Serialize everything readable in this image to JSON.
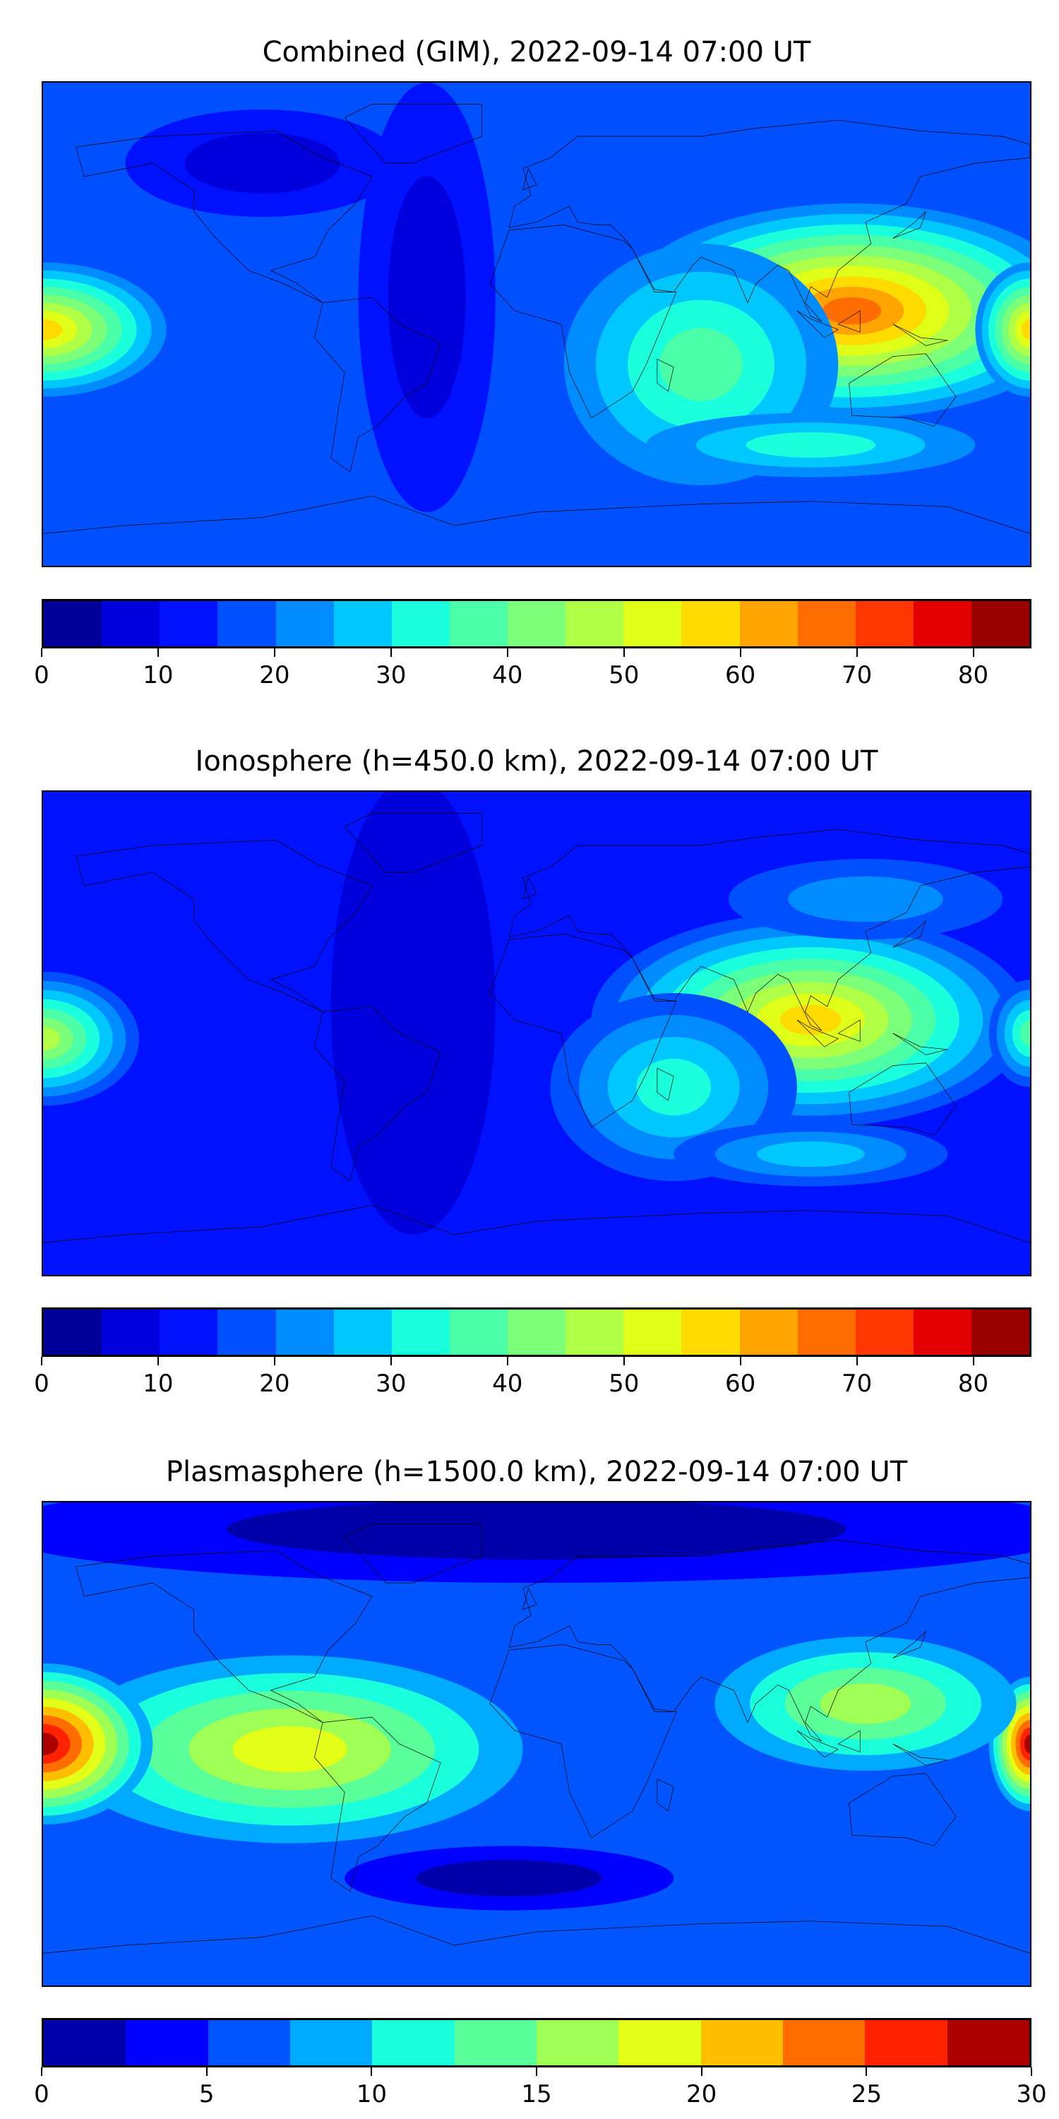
{
  "chart_data": [
    {
      "type": "heatmap",
      "title": "Combined (GIM), 2022-09-14 07:00 UT",
      "projection": "equirectangular world map with coastlines",
      "levels": [
        0,
        5,
        10,
        15,
        20,
        25,
        30,
        35,
        40,
        45,
        50,
        55,
        60,
        65,
        70,
        75,
        80,
        85
      ],
      "colors": [
        "#000099",
        "#0000dd",
        "#0011ff",
        "#0050ff",
        "#008cff",
        "#00c8ff",
        "#1affdc",
        "#4affa8",
        "#7cff79",
        "#b0ff47",
        "#dfff18",
        "#ffdb00",
        "#ffa400",
        "#ff6d00",
        "#ff3600",
        "#e20000",
        "#990000"
      ],
      "colorbar_ticks": [
        "0",
        "10",
        "20",
        "30",
        "40",
        "50",
        "60",
        "70",
        "80"
      ],
      "colorbar_tick_values": [
        0,
        10,
        20,
        30,
        40,
        50,
        60,
        70,
        80
      ],
      "vrange": [
        0,
        85
      ],
      "background_level": 15,
      "features": [
        {
          "lon": -40,
          "lat": 10,
          "value": 5,
          "rx": 25,
          "ry": 80
        },
        {
          "lon": -100,
          "lat": 60,
          "value": 5,
          "rx": 50,
          "ry": 20
        },
        {
          "lon": 115,
          "lat": 5,
          "value": 65,
          "rx": 85,
          "ry": 40
        },
        {
          "lon": 60,
          "lat": -15,
          "value": 35,
          "rx": 50,
          "ry": 45
        },
        {
          "lon": -180,
          "lat": -2,
          "value": 55,
          "rx": 45,
          "ry": 25
        },
        {
          "lon": 180,
          "lat": -2,
          "value": 55,
          "rx": 20,
          "ry": 25
        },
        {
          "lon": 100,
          "lat": -45,
          "value": 30,
          "rx": 60,
          "ry": 12
        }
      ]
    },
    {
      "type": "heatmap",
      "title": "Ionosphere  (h=450.0 km), 2022-09-14 07:00 UT",
      "projection": "equirectangular world map with coastlines",
      "levels": [
        0,
        5,
        10,
        15,
        20,
        25,
        30,
        35,
        40,
        45,
        50,
        55,
        60,
        65,
        70,
        75,
        80,
        85
      ],
      "colors": [
        "#000099",
        "#0000dd",
        "#0011ff",
        "#0050ff",
        "#008cff",
        "#00c8ff",
        "#1affdc",
        "#4affa8",
        "#7cff79",
        "#b0ff47",
        "#dfff18",
        "#ffdb00",
        "#ffa400",
        "#ff6d00",
        "#ff3600",
        "#e20000",
        "#990000"
      ],
      "colorbar_ticks": [
        "0",
        "10",
        "20",
        "30",
        "40",
        "50",
        "60",
        "70",
        "80"
      ],
      "colorbar_tick_values": [
        0,
        10,
        20,
        30,
        40,
        50,
        60,
        70,
        80
      ],
      "vrange": [
        0,
        85
      ],
      "background_level": 10,
      "features": [
        {
          "lon": -45,
          "lat": 10,
          "value": 5,
          "rx": 30,
          "ry": 85
        },
        {
          "lon": 100,
          "lat": 5,
          "value": 55,
          "rx": 80,
          "ry": 40
        },
        {
          "lon": 50,
          "lat": -20,
          "value": 30,
          "rx": 45,
          "ry": 35
        },
        {
          "lon": -180,
          "lat": -2,
          "value": 45,
          "rx": 35,
          "ry": 25
        },
        {
          "lon": 180,
          "lat": 0,
          "value": 35,
          "rx": 15,
          "ry": 20
        },
        {
          "lon": 100,
          "lat": -45,
          "value": 25,
          "rx": 50,
          "ry": 12
        },
        {
          "lon": 120,
          "lat": 50,
          "value": 20,
          "rx": 50,
          "ry": 15
        }
      ]
    },
    {
      "type": "heatmap",
      "title": "Plasmasphere (h=1500.0 km), 2022-09-14 07:00 UT",
      "projection": "equirectangular world map with coastlines",
      "levels": [
        0,
        2.5,
        5,
        7.5,
        10,
        12.5,
        15,
        17.5,
        20,
        22.5,
        25,
        27.5,
        30
      ],
      "colors": [
        "#0000aa",
        "#0000ff",
        "#0055ff",
        "#00aaff",
        "#1affdc",
        "#5bff9a",
        "#a0ff55",
        "#e4ff17",
        "#ffbf00",
        "#ff6d00",
        "#ff2200",
        "#aa0000"
      ],
      "colorbar_ticks": [
        "0",
        "5",
        "10",
        "15",
        "20",
        "25",
        "30"
      ],
      "colorbar_tick_values": [
        0,
        5,
        10,
        15,
        20,
        25,
        30
      ],
      "vrange": [
        0,
        30
      ],
      "background_level": 5,
      "features": [
        {
          "lon": 0,
          "lat": 80,
          "value": 0,
          "rx": 200,
          "ry": 20
        },
        {
          "lon": -10,
          "lat": -50,
          "value": 0,
          "rx": 60,
          "ry": 12
        },
        {
          "lon": -90,
          "lat": -2,
          "value": 17.5,
          "rx": 85,
          "ry": 35
        },
        {
          "lon": -180,
          "lat": 0,
          "value": 27.5,
          "rx": 40,
          "ry": 30
        },
        {
          "lon": 180,
          "lat": 0,
          "value": 27.5,
          "rx": 15,
          "ry": 25
        },
        {
          "lon": 120,
          "lat": 15,
          "value": 15,
          "rx": 55,
          "ry": 25
        },
        {
          "lon": 10,
          "lat": 5,
          "value": 5,
          "rx": 30,
          "ry": 25
        }
      ]
    }
  ]
}
